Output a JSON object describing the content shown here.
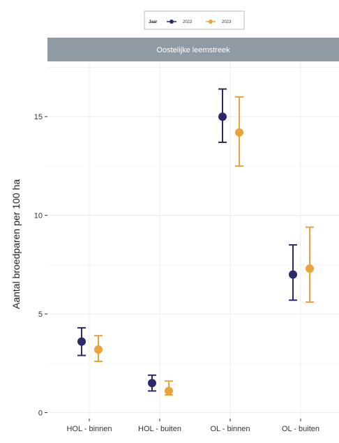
{
  "chart_data": {
    "type": "scatter",
    "facet_label": "Oostelijke leemstreek",
    "xlabel": "",
    "ylabel": "Aantal broedparen per 100 ha",
    "categories": [
      "HOL - binnen",
      "HOL - buiten",
      "OL - binnen",
      "OL - buiten"
    ],
    "ylim": [
      -0.3,
      17.8
    ],
    "yticks": [
      0,
      5,
      10,
      15
    ],
    "legend_title": "Jaar",
    "legend_position": "top",
    "grid": true,
    "series": [
      {
        "name": "2022",
        "color": "#2b2a68",
        "values": [
          3.6,
          1.5,
          15.0,
          7.0
        ],
        "lower": [
          2.9,
          1.1,
          13.7,
          5.7
        ],
        "upper": [
          4.3,
          1.9,
          16.4,
          8.5
        ]
      },
      {
        "name": "2023",
        "color": "#e8a33a",
        "values": [
          3.2,
          1.1,
          14.2,
          7.3
        ],
        "lower": [
          2.6,
          0.9,
          12.5,
          5.6
        ],
        "upper": [
          3.9,
          1.6,
          16.0,
          9.4
        ]
      }
    ]
  }
}
